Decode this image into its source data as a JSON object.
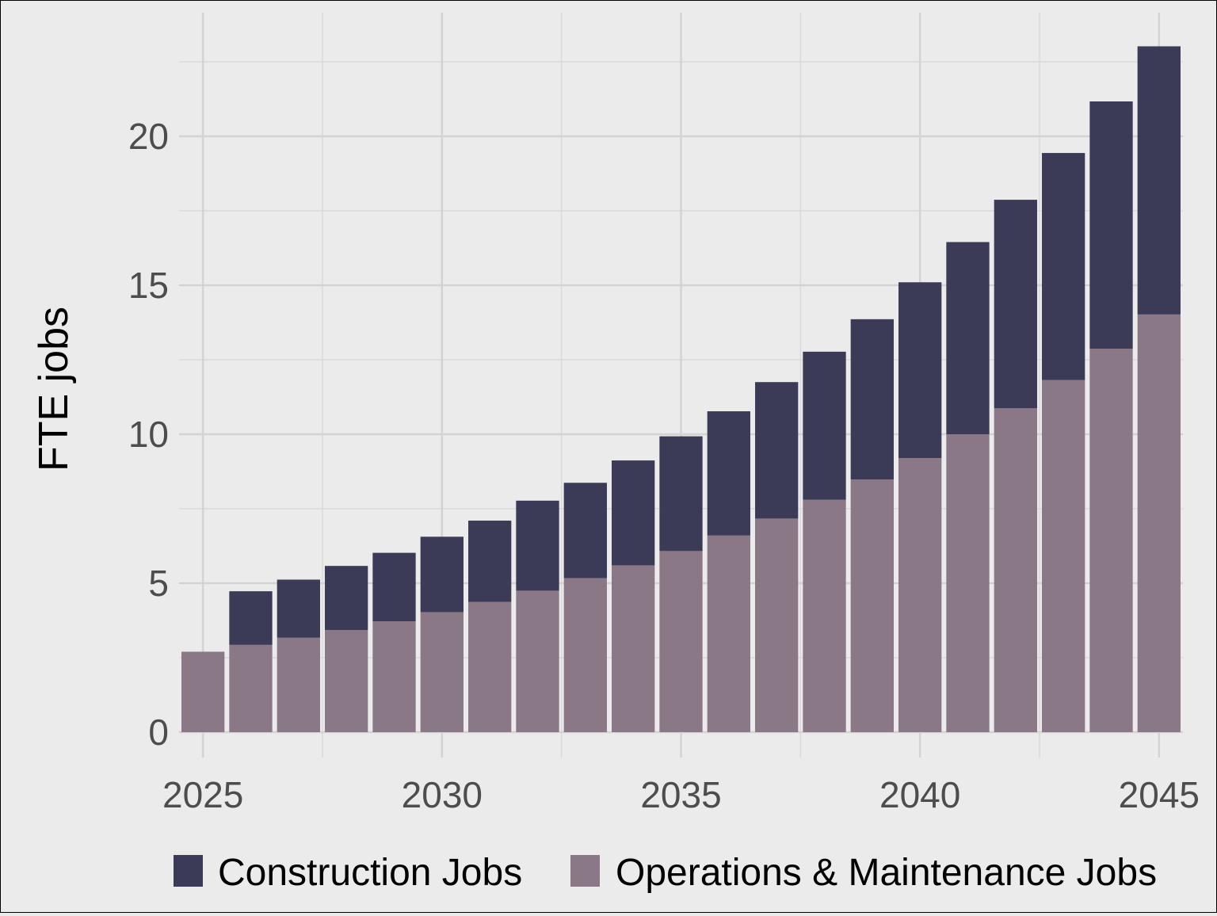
{
  "chart_data": {
    "type": "bar",
    "stacked": true,
    "x": [
      2025,
      2026,
      2027,
      2028,
      2029,
      2030,
      2031,
      2032,
      2033,
      2034,
      2035,
      2036,
      2037,
      2038,
      2039,
      2040,
      2041,
      2042,
      2043,
      2044,
      2045
    ],
    "series": [
      {
        "name": "Operations & Maintenance Jobs",
        "color": "#8a7887",
        "values": [
          2.7,
          2.93,
          3.17,
          3.43,
          3.72,
          4.03,
          4.37,
          4.75,
          5.17,
          5.6,
          6.08,
          6.6,
          7.17,
          7.8,
          8.48,
          9.2,
          10.0,
          10.87,
          11.82,
          12.87,
          14.02
        ]
      },
      {
        "name": "Construction Jobs",
        "color": "#3b3b57",
        "values": [
          0,
          1.8,
          1.95,
          2.15,
          2.3,
          2.53,
          2.73,
          3.02,
          3.2,
          3.52,
          3.85,
          4.17,
          4.58,
          4.97,
          5.38,
          5.9,
          6.45,
          7.0,
          7.62,
          8.3,
          9.0
        ]
      }
    ],
    "xlabel": "",
    "ylabel": "FTE jobs",
    "xlim": [
      2024.5,
      2045.5
    ],
    "ylim": [
      0,
      23
    ],
    "x_ticks": [
      2025,
      2030,
      2035,
      2040,
      2045
    ],
    "y_ticks": [
      0,
      5,
      10,
      15,
      20
    ],
    "grid": true,
    "legend_position": "bottom"
  }
}
